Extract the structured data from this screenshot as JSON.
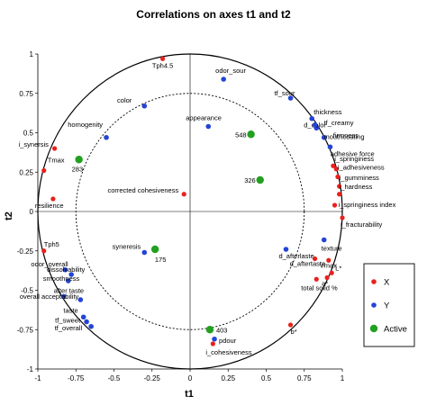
{
  "chart_data": {
    "type": "scatter",
    "title": "Correlations on axes t1 and t2",
    "xlabel": "t1",
    "ylabel": "t2",
    "xlim": [
      -1,
      1
    ],
    "ylim": [
      -1,
      1
    ],
    "xticks": [
      -1,
      -0.75,
      -0.5,
      -0.25,
      0,
      0.25,
      0.5,
      0.75,
      1
    ],
    "yticks": [
      -1,
      -0.75,
      -0.5,
      -0.25,
      0,
      0.25,
      0.5,
      0.75,
      1
    ],
    "xtick_labels": [
      "-1",
      "-0.75",
      "-0.5",
      "-0.25",
      "0",
      "0.25",
      "0.5",
      "0.75",
      "1"
    ],
    "ytick_labels": [
      "-1",
      "-0.75",
      "-0.5",
      "-0.25",
      "0",
      "0.25",
      "0.5",
      "0.75",
      "1"
    ],
    "unit_circle": true,
    "inner_circle_radius": 0.75,
    "legend": {
      "placement": "right",
      "entries": [
        "X",
        "Y",
        "Active"
      ]
    },
    "colors": {
      "X": "#e8211d",
      "Y": "#2444d6",
      "Active": "#22a020"
    },
    "series": [
      {
        "name": "X",
        "points": [
          {
            "label": "Tph4.5",
            "x": -0.18,
            "y": 0.97
          },
          {
            "label": "Tmax",
            "x": -0.96,
            "y": 0.26
          },
          {
            "label": "i_synersis",
            "x": -0.89,
            "y": 0.4
          },
          {
            "label": "resilience",
            "x": -0.9,
            "y": 0.08
          },
          {
            "label": "corrected cohesiveness",
            "x": -0.04,
            "y": 0.11
          },
          {
            "label": "Tph5",
            "x": -0.96,
            "y": -0.25
          },
          {
            "label": "adhesive force",
            "x": 0.94,
            "y": 0.29
          },
          {
            "label": "i_springiness",
            "x": 0.96,
            "y": 0.27
          },
          {
            "label": "i_adhesiveness",
            "x": 0.97,
            "y": 0.22
          },
          {
            "label": "i_gumminess",
            "x": 0.98,
            "y": 0.16
          },
          {
            "label": "i_hardness",
            "x": 0.98,
            "y": 0.11
          },
          {
            "label": "i_springiness index",
            "x": 0.95,
            "y": 0.04
          },
          {
            "label": "i_fracturability",
            "x": 1.0,
            "y": -0.04
          },
          {
            "label": "d_aftertaste",
            "x": 0.82,
            "y": -0.3
          },
          {
            "label": "Vmax",
            "x": 0.91,
            "y": -0.31
          },
          {
            "label": "L*",
            "x": 0.93,
            "y": -0.39
          },
          {
            "label": "a*",
            "x": 0.9,
            "y": -0.42
          },
          {
            "label": "total solid %",
            "x": 0.83,
            "y": -0.43
          },
          {
            "label": "b*",
            "x": 0.66,
            "y": -0.72
          },
          {
            "label": "i_cohesiveness",
            "x": 0.15,
            "y": -0.84
          }
        ]
      },
      {
        "name": "Y",
        "points": [
          {
            "label": "odor_sour",
            "x": 0.22,
            "y": 0.84
          },
          {
            "label": "color",
            "x": -0.3,
            "y": 0.67
          },
          {
            "label": "appearance",
            "x": 0.12,
            "y": 0.54
          },
          {
            "label": "homogenity",
            "x": -0.55,
            "y": 0.47
          },
          {
            "label": "tf_sour",
            "x": 0.66,
            "y": 0.72
          },
          {
            "label": "d_color",
            "x": 0.83,
            "y": 0.53
          },
          {
            "label": "thickness",
            "x": 0.8,
            "y": 0.59
          },
          {
            "label": "tf_creamy",
            "x": 0.82,
            "y": 0.55
          },
          {
            "label": "firmness",
            "x": 0.88,
            "y": 0.47
          },
          {
            "label": "mouthcoating",
            "x": 0.92,
            "y": 0.41
          },
          {
            "label": "syneresis",
            "x": -0.3,
            "y": -0.26
          },
          {
            "label": "texture",
            "x": 0.88,
            "y": -0.18
          },
          {
            "label": "odor_overall",
            "x": -0.82,
            "y": -0.37
          },
          {
            "label": "dissolvability",
            "x": -0.78,
            "y": -0.4
          },
          {
            "label": "smoothness",
            "x": -0.8,
            "y": -0.44
          },
          {
            "label": "after taste",
            "x": -0.83,
            "y": -0.54
          },
          {
            "label": "overall acceptability",
            "x": -0.72,
            "y": -0.56
          },
          {
            "label": "taste",
            "x": -0.7,
            "y": -0.67
          },
          {
            "label": "tf_sweet",
            "x": -0.68,
            "y": -0.7
          },
          {
            "label": "tf_overall",
            "x": -0.65,
            "y": -0.73
          },
          {
            "label": "pdour",
            "x": 0.16,
            "y": -0.81
          },
          {
            "label": "d_afterlaste",
            "x": 0.63,
            "y": -0.24
          }
        ]
      },
      {
        "name": "Active",
        "points": [
          {
            "label": "283",
            "x": -0.73,
            "y": 0.33
          },
          {
            "label": "548",
            "x": 0.4,
            "y": 0.49
          },
          {
            "label": "326",
            "x": 0.46,
            "y": 0.2
          },
          {
            "label": "175",
            "x": -0.23,
            "y": -0.24
          },
          {
            "label": "403",
            "x": 0.13,
            "y": -0.75
          }
        ]
      }
    ]
  }
}
